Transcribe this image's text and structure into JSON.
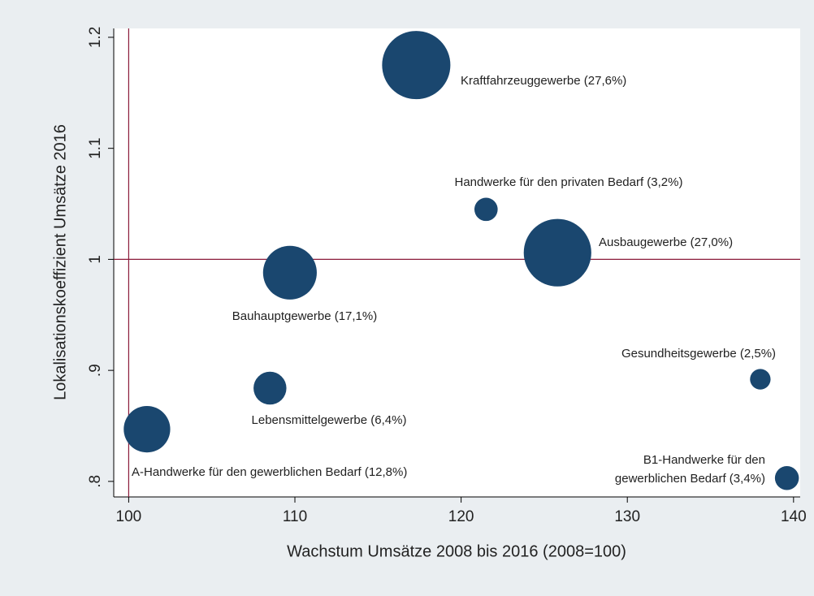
{
  "chart_data": {
    "type": "scatter",
    "x_label": "Wachstum Umsätze 2008 bis 2016 (2008=100)",
    "y_label": "Lokalisationskoeffizient Umsätze  2016",
    "x": [
      117.3,
      121.5,
      125.8,
      109.7,
      138.0,
      108.5,
      101.1,
      139.6
    ],
    "y": [
      1.175,
      1.045,
      1.006,
      0.988,
      0.892,
      0.884,
      0.847,
      0.803
    ],
    "sizes": [
      27.6,
      3.2,
      27.0,
      17.1,
      2.5,
      6.4,
      12.8,
      3.4
    ],
    "labels": [
      [
        "Kraftfahrzeuggewerbe (27,6%)"
      ],
      [
        "Handwerke für den privaten Bedarf (3,2%)"
      ],
      [
        "Ausbaugewerbe (27,0%)"
      ],
      [
        "Bauhauptgewerbe (17,1%)"
      ],
      [
        "Gesundheitsgewerbe (2,5%)"
      ],
      [
        "Lebensmittelgewerbe (6,4%)"
      ],
      [
        "A-Handwerke für den gewerblichen Bedarf (12,8%)"
      ],
      [
        "B1-Handwerke für den",
        "gewerblichen Bedarf (3,4%)"
      ]
    ],
    "color": "#1a476f",
    "xlim": [
      99.1,
      140.4
    ],
    "ylim": [
      0.786,
      1.208
    ],
    "xticks": [
      100,
      110,
      120,
      130,
      140
    ],
    "yticks": [
      {
        "value": 0.8,
        "label": ".8"
      },
      {
        "value": 0.9,
        "label": ".9"
      },
      1,
      1.1,
      1.2
    ],
    "xline": 100,
    "yline": 1,
    "line_color": "#8b1a3a"
  }
}
